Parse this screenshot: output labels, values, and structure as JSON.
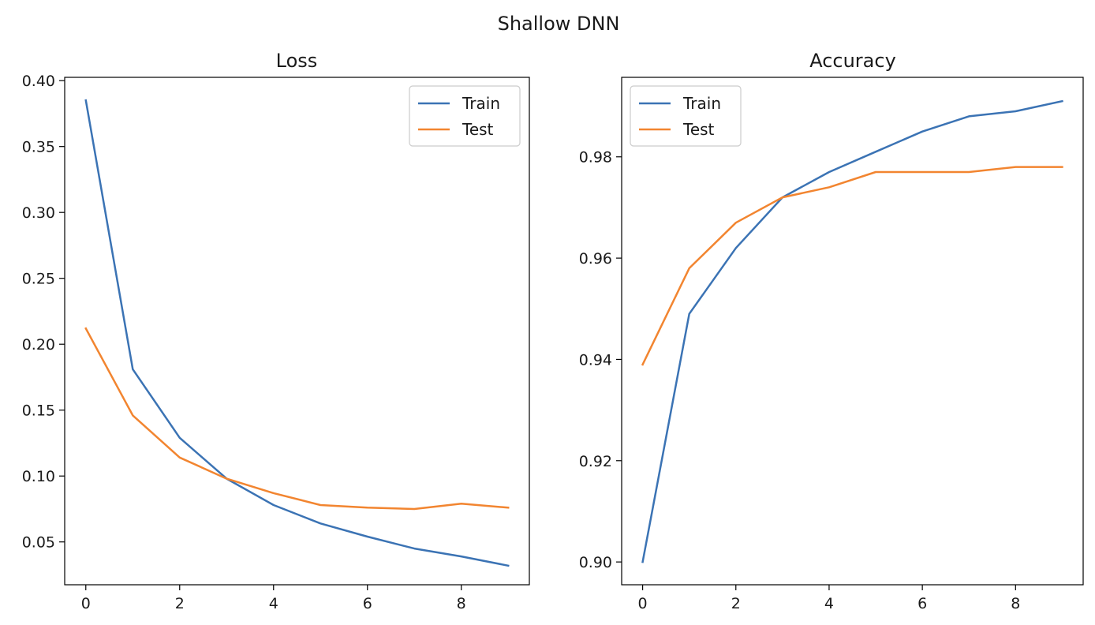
{
  "figure": {
    "suptitle": "Shallow DNN"
  },
  "colors": {
    "train": "#3b73b4",
    "test": "#f28530",
    "frame": "#000000",
    "legend_border": "#cccccc"
  },
  "chart_data": [
    {
      "type": "line",
      "title": "Loss",
      "xlabel": "",
      "ylabel": "",
      "xlim": [
        -0.45,
        9.45
      ],
      "ylim": [
        0.0175,
        0.4025
      ],
      "xticks": [
        0,
        2,
        4,
        6,
        8
      ],
      "xtick_labels": [
        "0",
        "2",
        "4",
        "6",
        "8"
      ],
      "yticks": [
        0.05,
        0.1,
        0.15,
        0.2,
        0.25,
        0.3,
        0.35,
        0.4
      ],
      "ytick_labels": [
        "0.05",
        "0.10",
        "0.15",
        "0.20",
        "0.25",
        "0.30",
        "0.35",
        "0.40"
      ],
      "grid": false,
      "legend_position": "top-right",
      "x": [
        0,
        1,
        2,
        3,
        4,
        5,
        6,
        7,
        8,
        9
      ],
      "series": [
        {
          "name": "Train",
          "color_key": "train",
          "values": [
            0.385,
            0.181,
            0.129,
            0.098,
            0.078,
            0.064,
            0.054,
            0.045,
            0.039,
            0.032
          ]
        },
        {
          "name": "Test",
          "color_key": "test",
          "values": [
            0.212,
            0.146,
            0.114,
            0.098,
            0.087,
            0.078,
            0.076,
            0.075,
            0.079,
            0.076
          ]
        }
      ]
    },
    {
      "type": "line",
      "title": "Accuracy",
      "xlabel": "",
      "ylabel": "",
      "xlim": [
        -0.45,
        9.45
      ],
      "ylim": [
        0.8955,
        0.9957
      ],
      "xticks": [
        0,
        2,
        4,
        6,
        8
      ],
      "xtick_labels": [
        "0",
        "2",
        "4",
        "6",
        "8"
      ],
      "yticks": [
        0.9,
        0.92,
        0.94,
        0.96,
        0.98
      ],
      "ytick_labels": [
        "0.90",
        "0.92",
        "0.94",
        "0.96",
        "0.98"
      ],
      "grid": false,
      "legend_position": "top-left",
      "x": [
        0,
        1,
        2,
        3,
        4,
        5,
        6,
        7,
        8,
        9
      ],
      "series": [
        {
          "name": "Train",
          "color_key": "train",
          "values": [
            0.9,
            0.949,
            0.962,
            0.972,
            0.977,
            0.981,
            0.985,
            0.988,
            0.989,
            0.991
          ]
        },
        {
          "name": "Test",
          "color_key": "test",
          "values": [
            0.939,
            0.958,
            0.967,
            0.972,
            0.974,
            0.977,
            0.977,
            0.977,
            0.978,
            0.978
          ]
        }
      ]
    }
  ]
}
